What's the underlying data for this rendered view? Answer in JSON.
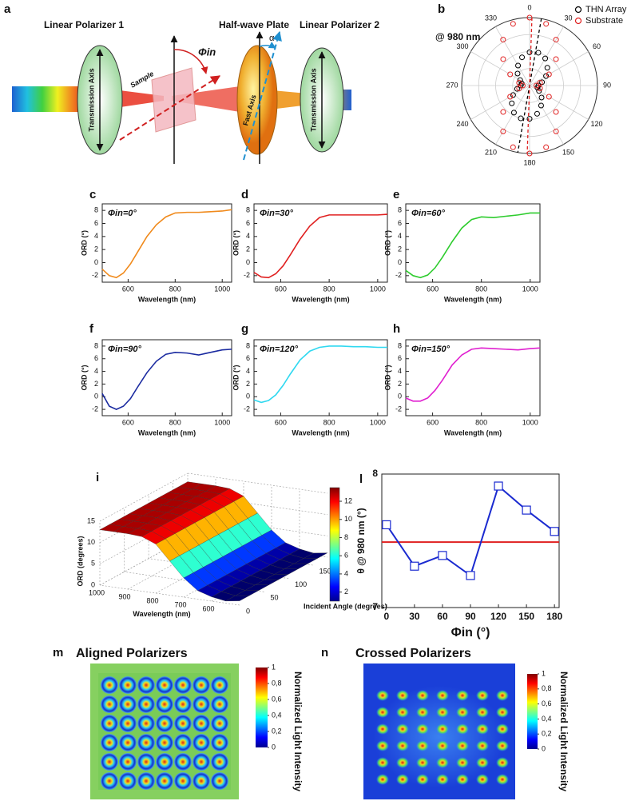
{
  "panel_a": {
    "label": "a",
    "polarizer_1": "Linear Polarizer 1",
    "half_wave_plate": "Half-wave Plate",
    "polarizer_2": "Linear Polarizer 2",
    "sample": "Sample",
    "phi_in": "Φin",
    "alpha": "α",
    "fast_axis": "Fast Axis",
    "transmission_axis_1": "Transmission Axis",
    "transmission_axis_2": "Transmission Axis"
  },
  "chart_data": [
    {
      "type": "polar",
      "panel": "b",
      "title": "@ 980 nm",
      "rlim": [
        0,
        1
      ],
      "theta": [
        0,
        15,
        30,
        45,
        60,
        75,
        90,
        105,
        120,
        135,
        150,
        165,
        180,
        195,
        210,
        225,
        240,
        255,
        270,
        285,
        300,
        315,
        330,
        345
      ],
      "thetaticks": [
        0,
        30,
        60,
        90,
        120,
        150,
        180,
        210,
        240,
        270,
        300,
        330
      ],
      "series": [
        {
          "name": "THN Array",
          "color": "#000000",
          "axis_angle": 10,
          "values": [
            0.49,
            0.5,
            0.46,
            0.37,
            0.28,
            0.19,
            0.13,
            0.12,
            0.16,
            0.25,
            0.34,
            0.43,
            0.49,
            0.5,
            0.46,
            0.37,
            0.28,
            0.19,
            0.13,
            0.12,
            0.16,
            0.25,
            0.34,
            0.43
          ]
        },
        {
          "name": "Substrate",
          "color": "#e02020",
          "axis_angle": 2,
          "values": [
            1.0,
            0.94,
            0.78,
            0.55,
            0.33,
            0.16,
            0.1,
            0.16,
            0.33,
            0.55,
            0.78,
            0.94,
            1.0,
            0.94,
            0.78,
            0.55,
            0.33,
            0.16,
            0.1,
            0.16,
            0.33,
            0.55,
            0.78,
            0.94
          ]
        }
      ],
      "legend": "upper right"
    },
    {
      "type": "line",
      "panel": "c",
      "title": "Φin=0°",
      "xlabel": "Wavelength (nm)",
      "ylabel": "ORD (°)",
      "x": [
        490,
        520,
        550,
        580,
        610,
        640,
        680,
        720,
        760,
        800,
        850,
        900,
        950,
        1000,
        1040
      ],
      "series": [
        {
          "color": "#f08a1c",
          "values": [
            -1.0,
            -2.0,
            -2.3,
            -1.6,
            -0.2,
            1.6,
            4.0,
            5.8,
            7.0,
            7.6,
            7.7,
            7.7,
            7.8,
            7.9,
            8.1
          ]
        }
      ],
      "xlim": [
        490,
        1040
      ],
      "xticks": [
        600,
        800,
        1000
      ],
      "ylim": [
        -3,
        9
      ],
      "yticks": [
        -2,
        0,
        2,
        4,
        6,
        8
      ]
    },
    {
      "type": "line",
      "panel": "d",
      "title": "Φin=30°",
      "xlabel": "Wavelength (nm)",
      "ylabel": "ORD (°)",
      "x": [
        490,
        520,
        550,
        580,
        610,
        640,
        680,
        720,
        760,
        800,
        850,
        900,
        950,
        1000,
        1040
      ],
      "series": [
        {
          "color": "#e02020",
          "values": [
            -1.5,
            -2.2,
            -2.3,
            -1.7,
            -0.5,
            1.2,
            3.6,
            5.6,
            6.9,
            7.3,
            7.3,
            7.3,
            7.3,
            7.3,
            7.4
          ]
        }
      ],
      "xlim": [
        490,
        1040
      ],
      "xticks": [
        600,
        800,
        1000
      ],
      "ylim": [
        -3,
        9
      ],
      "yticks": [
        -2,
        0,
        2,
        4,
        6,
        8
      ]
    },
    {
      "type": "line",
      "panel": "e",
      "title": "Φin=60°",
      "xlabel": "Wavelength (nm)",
      "ylabel": "ORD (°)",
      "x": [
        490,
        520,
        550,
        580,
        610,
        640,
        680,
        720,
        760,
        800,
        850,
        900,
        950,
        1000,
        1040
      ],
      "series": [
        {
          "color": "#2ecc2e",
          "values": [
            -1.2,
            -2.0,
            -2.3,
            -1.9,
            -0.8,
            0.8,
            3.2,
            5.3,
            6.6,
            7.0,
            6.9,
            7.1,
            7.3,
            7.6,
            7.6
          ]
        }
      ],
      "xlim": [
        490,
        1040
      ],
      "xticks": [
        600,
        800,
        1000
      ],
      "ylim": [
        -3,
        9
      ],
      "yticks": [
        -2,
        0,
        2,
        4,
        6,
        8
      ]
    },
    {
      "type": "line",
      "panel": "f",
      "title": "Φin=90°",
      "xlabel": "Wavelength (nm)",
      "ylabel": "ORD (°)",
      "x": [
        490,
        520,
        550,
        580,
        610,
        640,
        680,
        720,
        760,
        800,
        850,
        900,
        950,
        1000,
        1040
      ],
      "series": [
        {
          "color": "#1a2aa0",
          "values": [
            0.5,
            -1.5,
            -2.0,
            -1.5,
            -0.3,
            1.5,
            3.8,
            5.6,
            6.7,
            7.0,
            6.9,
            6.6,
            7.0,
            7.4,
            7.5
          ]
        }
      ],
      "xlim": [
        490,
        1040
      ],
      "xticks": [
        600,
        800,
        1000
      ],
      "ylim": [
        -3,
        9
      ],
      "yticks": [
        -2,
        0,
        2,
        4,
        6,
        8
      ]
    },
    {
      "type": "line",
      "panel": "g",
      "title": "Φin=120°",
      "xlabel": "Wavelength (nm)",
      "ylabel": "ORD (°)",
      "x": [
        490,
        520,
        550,
        580,
        610,
        640,
        680,
        720,
        760,
        800,
        850,
        900,
        950,
        1000,
        1040
      ],
      "series": [
        {
          "color": "#2fd8f0",
          "values": [
            -0.5,
            -0.9,
            -0.6,
            0.3,
            1.8,
            3.6,
            5.8,
            7.2,
            7.8,
            8.0,
            8.0,
            7.9,
            7.9,
            7.8,
            7.8
          ]
        }
      ],
      "xlim": [
        490,
        1040
      ],
      "xticks": [
        600,
        800,
        1000
      ],
      "ylim": [
        -3,
        9
      ],
      "yticks": [
        -2,
        0,
        2,
        4,
        6,
        8
      ]
    },
    {
      "type": "line",
      "panel": "h",
      "title": "Φin=150°",
      "xlabel": "Wavelength (nm)",
      "ylabel": "ORD (°)",
      "x": [
        490,
        520,
        550,
        580,
        610,
        640,
        680,
        720,
        760,
        800,
        850,
        900,
        950,
        1000,
        1040
      ],
      "series": [
        {
          "color": "#e020d0",
          "values": [
            -0.2,
            -0.7,
            -0.7,
            -0.2,
            1.0,
            2.6,
            5.0,
            6.6,
            7.5,
            7.7,
            7.6,
            7.5,
            7.4,
            7.6,
            7.7
          ]
        }
      ],
      "xlim": [
        490,
        1040
      ],
      "xticks": [
        600,
        800,
        1000
      ],
      "ylim": [
        -3,
        9
      ],
      "yticks": [
        -2,
        0,
        2,
        4,
        6,
        8
      ]
    },
    {
      "type": "surface",
      "panel": "i",
      "xlabel": "Wavelength (nm)",
      "ylabel": "Incident Angle (degrees)",
      "zlabel": "ORD (degrees)",
      "x": [
        500,
        550,
        600,
        650,
        700,
        750,
        800,
        850,
        900,
        950,
        1000
      ],
      "values": [
        1.0,
        0.5,
        1.0,
        2.0,
        4.5,
        8.0,
        11.5,
        12.8,
        13.0,
        13.0,
        13.0
      ],
      "xlim": [
        500,
        1000
      ],
      "xticks": [
        1000,
        900,
        800,
        700,
        600
      ],
      "ylim": [
        0,
        180
      ],
      "yticks": [
        0,
        50,
        100,
        150
      ],
      "zlim": [
        0,
        15
      ],
      "zticks": [
        0,
        5,
        10,
        15
      ],
      "clim": [
        1,
        13.5
      ],
      "cticks": [
        2,
        4,
        6,
        8,
        10,
        12
      ]
    },
    {
      "type": "line",
      "panel": "l",
      "xlabel": "Φin (°)",
      "ylabel": "θ @ 980 nm (°)",
      "x": [
        0,
        30,
        60,
        90,
        120,
        150,
        180
      ],
      "series": [
        {
          "color": "#1a2ad0",
          "marker": "square",
          "values": [
            7.62,
            7.31,
            7.39,
            7.24,
            7.91,
            7.73,
            7.57
          ]
        }
      ],
      "hline": {
        "value": 7.49,
        "color": "#e02020"
      },
      "xlim": [
        -5,
        185
      ],
      "xticks": [
        0,
        30,
        60,
        90,
        120,
        150,
        180
      ],
      "ylim": [
        7,
        8
      ],
      "yticks": [
        7,
        8
      ]
    },
    {
      "type": "heatmap",
      "panel": "m",
      "title": "Aligned Polarizers",
      "colorbar_label": "Normalized Light Intensity",
      "clim": [
        0,
        1
      ],
      "cticks": [
        0,
        {
          "value": 0.2,
          "label": "0,2"
        },
        {
          "value": 0.4,
          "label": "0,4"
        },
        {
          "value": 0.6,
          "label": "0,6"
        },
        {
          "value": 0.8,
          "label": "0,8"
        },
        1
      ]
    },
    {
      "type": "heatmap",
      "panel": "n",
      "title": "Crossed Polarizers",
      "colorbar_label": "Normalized Light Intensity",
      "clim": [
        0,
        1
      ],
      "cticks": [
        0,
        {
          "value": 0.2,
          "label": "0,2"
        },
        {
          "value": 0.4,
          "label": "0,4"
        },
        {
          "value": 0.6,
          "label": "0,6"
        },
        {
          "value": 0.8,
          "label": "0,8"
        },
        1
      ]
    }
  ]
}
